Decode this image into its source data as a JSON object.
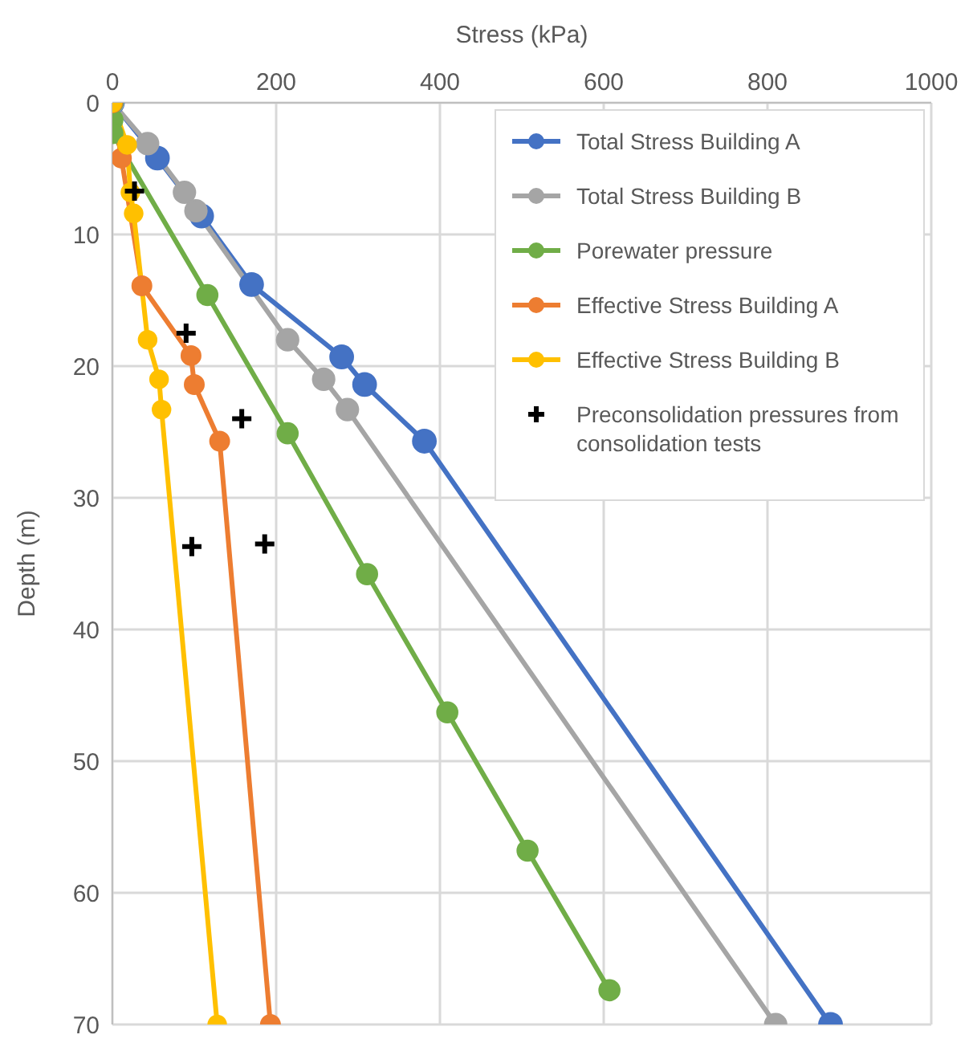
{
  "chart_data": {
    "type": "line",
    "xlabel": "Stress (kPa)",
    "ylabel": "Depth (m)",
    "xlim": [
      0,
      1000
    ],
    "xticks": [
      0,
      200,
      400,
      600,
      800,
      1000
    ],
    "ylim": [
      70,
      0
    ],
    "yticks": [
      0,
      10,
      20,
      30,
      40,
      50,
      60,
      70
    ],
    "grid": true,
    "legend": "top right",
    "marker": "circle",
    "series": [
      {
        "name": "Total Stress Building A",
        "color": "#4472c4",
        "x": [
          0,
          55,
          109,
          170,
          280,
          308,
          381,
          877
        ],
        "values": [
          0,
          4.2,
          8.6,
          13.8,
          19.3,
          21.4,
          25.7,
          70
        ]
      },
      {
        "name": "Total Stress Building B",
        "color": "#a5a5a5",
        "x": [
          0,
          43,
          88,
          102,
          214,
          258,
          287,
          810
        ],
        "values": [
          0,
          3.1,
          6.8,
          8.2,
          18,
          21,
          23.3,
          70
        ]
      },
      {
        "name": "Porewater pressure",
        "color": "#70ad47",
        "x": [
          0,
          0,
          0,
          116,
          214,
          311,
          409,
          507,
          607
        ],
        "values": [
          0,
          1.3,
          2.3,
          14.6,
          25.1,
          35.8,
          46.3,
          56.8,
          67.4
        ]
      },
      {
        "name": "Effective Stress Building A",
        "color": "#ed7d31",
        "x": [
          0,
          11,
          29,
          36,
          96,
          100,
          131,
          193
        ],
        "values": [
          0,
          4.2,
          null,
          13.9,
          19.2,
          21.4,
          25.7,
          70
        ]
      },
      {
        "name": "Effective Stress Building B",
        "color": "#ffc000",
        "x": [
          0,
          18,
          22,
          26,
          43,
          57,
          60,
          128
        ],
        "values": [
          0,
          3.2,
          6.8,
          8.4,
          18,
          21,
          23.3,
          70
        ]
      },
      {
        "name": "Preconsolidation pressures from consolidation tests",
        "type": "scatter",
        "marker": "cross",
        "color": "#000000",
        "x": [
          27,
          90,
          158,
          97,
          186
        ],
        "values": [
          6.7,
          17.5,
          24,
          33.7,
          33.5
        ]
      }
    ]
  }
}
